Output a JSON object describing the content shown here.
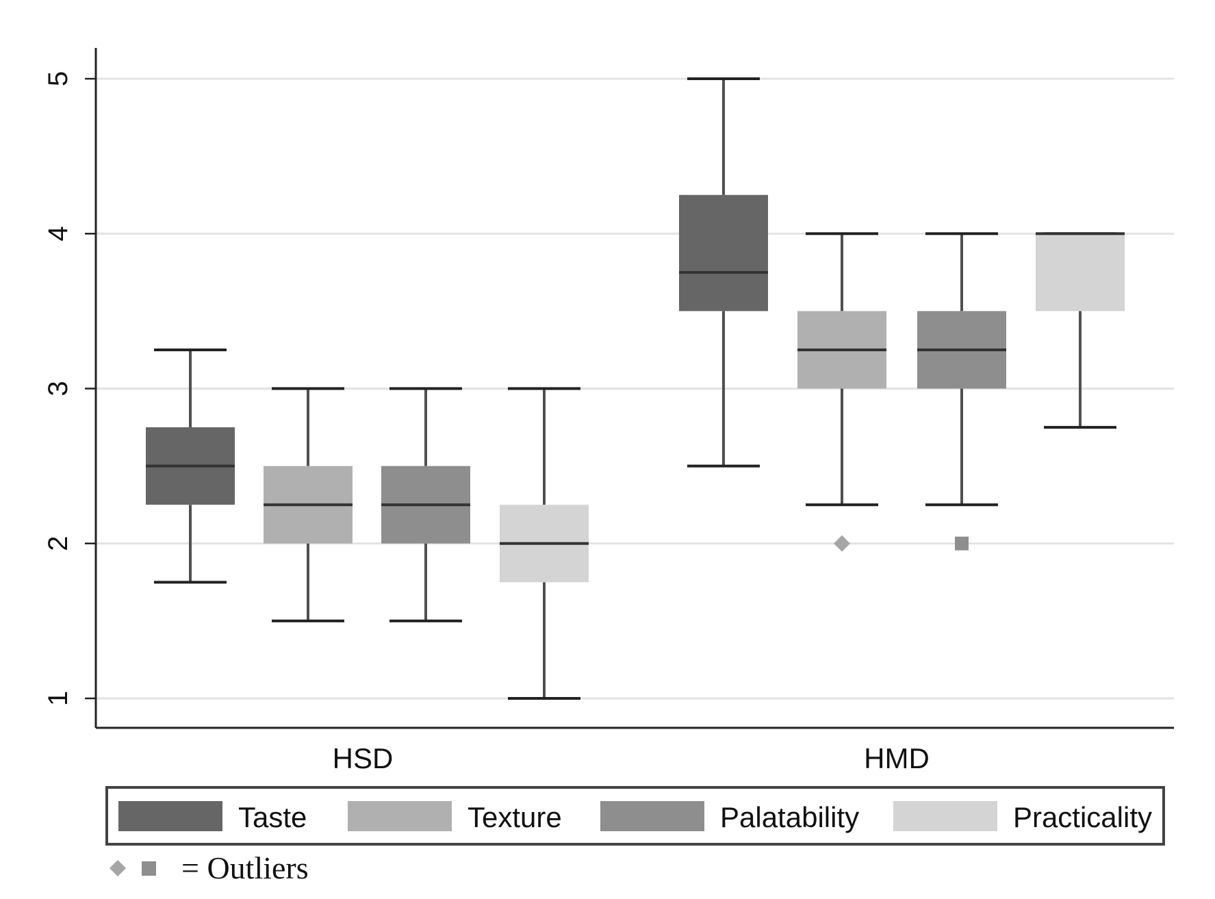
{
  "chart_data": {
    "type": "box",
    "title": "",
    "xlabel": "",
    "ylabel": "",
    "ylim": [
      0.8,
      5.2
    ],
    "yticks": [
      "1",
      "2",
      "3",
      "4",
      "5"
    ],
    "grid": true,
    "groups": [
      "HSD",
      "HMD"
    ],
    "series": [
      {
        "name": "Taste",
        "color": "#666666",
        "boxes": [
          {
            "group": "HSD",
            "min": 1.75,
            "q1": 2.25,
            "median": 2.5,
            "q3": 2.75,
            "max": 3.25,
            "outliers": []
          },
          {
            "group": "HMD",
            "min": 2.5,
            "q1": 3.5,
            "median": 3.75,
            "q3": 4.25,
            "max": 5.0,
            "outliers": []
          }
        ]
      },
      {
        "name": "Texture",
        "color": "#b0b0b0",
        "boxes": [
          {
            "group": "HSD",
            "min": 1.5,
            "q1": 2.0,
            "median": 2.25,
            "q3": 2.5,
            "max": 3.0,
            "outliers": []
          },
          {
            "group": "HMD",
            "min": 2.25,
            "q1": 3.0,
            "median": 3.25,
            "q3": 3.5,
            "max": 4.0,
            "outliers": [
              2.0
            ],
            "outlier_marker": "diamond"
          }
        ]
      },
      {
        "name": "Palatability",
        "color": "#8e8e8e",
        "boxes": [
          {
            "group": "HSD",
            "min": 1.5,
            "q1": 2.0,
            "median": 2.25,
            "q3": 2.5,
            "max": 3.0,
            "outliers": []
          },
          {
            "group": "HMD",
            "min": 2.25,
            "q1": 3.0,
            "median": 3.25,
            "q3": 3.5,
            "max": 4.0,
            "outliers": [
              2.0
            ],
            "outlier_marker": "square"
          }
        ]
      },
      {
        "name": "Practicality",
        "color": "#d4d4d4",
        "boxes": [
          {
            "group": "HSD",
            "min": 1.0,
            "q1": 1.75,
            "median": 2.0,
            "q3": 2.25,
            "max": 3.0,
            "outliers": []
          },
          {
            "group": "HMD",
            "min": 2.75,
            "q1": 3.5,
            "median": 4.0,
            "q3": 4.0,
            "max": 4.0,
            "outliers": []
          }
        ]
      }
    ],
    "legend": {
      "placement": "bottom",
      "entries": [
        "Taste",
        "Texture",
        "Palatability",
        "Practicality"
      ]
    },
    "annotation": {
      "text": "= Outliers",
      "marker_colors": [
        "#a6a6a6",
        "#8e8e8e"
      ]
    }
  }
}
